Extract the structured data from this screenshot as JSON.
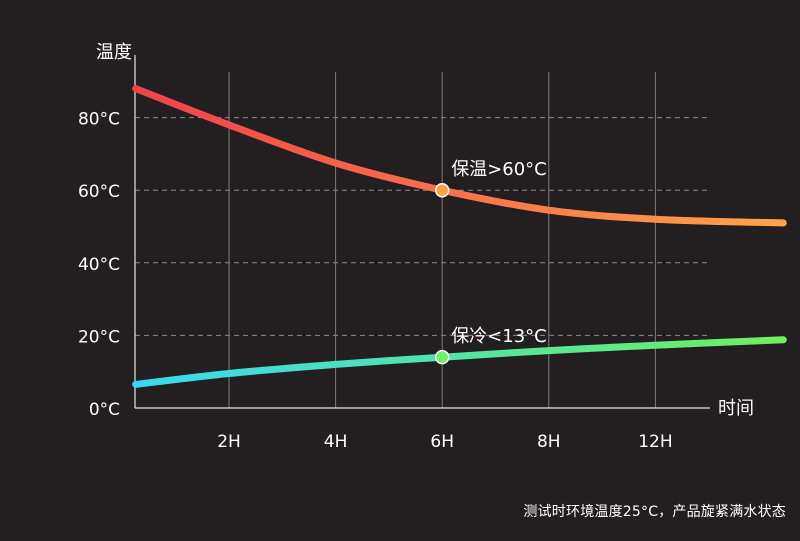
{
  "chart_data": {
    "type": "line",
    "ylabel": "温度",
    "xlabel": "时间",
    "categories": [
      "2H",
      "4H",
      "6H",
      "8H",
      "12H"
    ],
    "y_ticks": [
      "0°C",
      "20°C",
      "40°C",
      "60°C",
      "80°C"
    ],
    "ylim": [
      0,
      95
    ],
    "grid": true,
    "series": [
      {
        "name": "hot",
        "color_start": "#f0434a",
        "color_end": "#ffa34a",
        "points": [
          [
            0.25,
            88
          ],
          [
            2,
            78
          ],
          [
            4,
            67.5
          ],
          [
            6,
            60
          ],
          [
            8,
            54.5
          ],
          [
            10,
            52
          ],
          [
            12.4,
            51
          ]
        ]
      },
      {
        "name": "cold",
        "color_start": "#3ad8f0",
        "color_end": "#6df05a",
        "points": [
          [
            0.25,
            6.5
          ],
          [
            2,
            9.5
          ],
          [
            4,
            12
          ],
          [
            6,
            14
          ],
          [
            8,
            15.8
          ],
          [
            10,
            17.3
          ],
          [
            12.4,
            18.8
          ]
        ]
      }
    ],
    "annotations": [
      {
        "label": "保温>60°C",
        "x": 6,
        "y": 60,
        "color": "#ff9c4a"
      },
      {
        "label": "保冷<13°C",
        "x": 6,
        "y": 14,
        "color": "#6df06a"
      }
    ]
  },
  "footnote": "测试时环境温度25°C，产品旋紧满水状态"
}
